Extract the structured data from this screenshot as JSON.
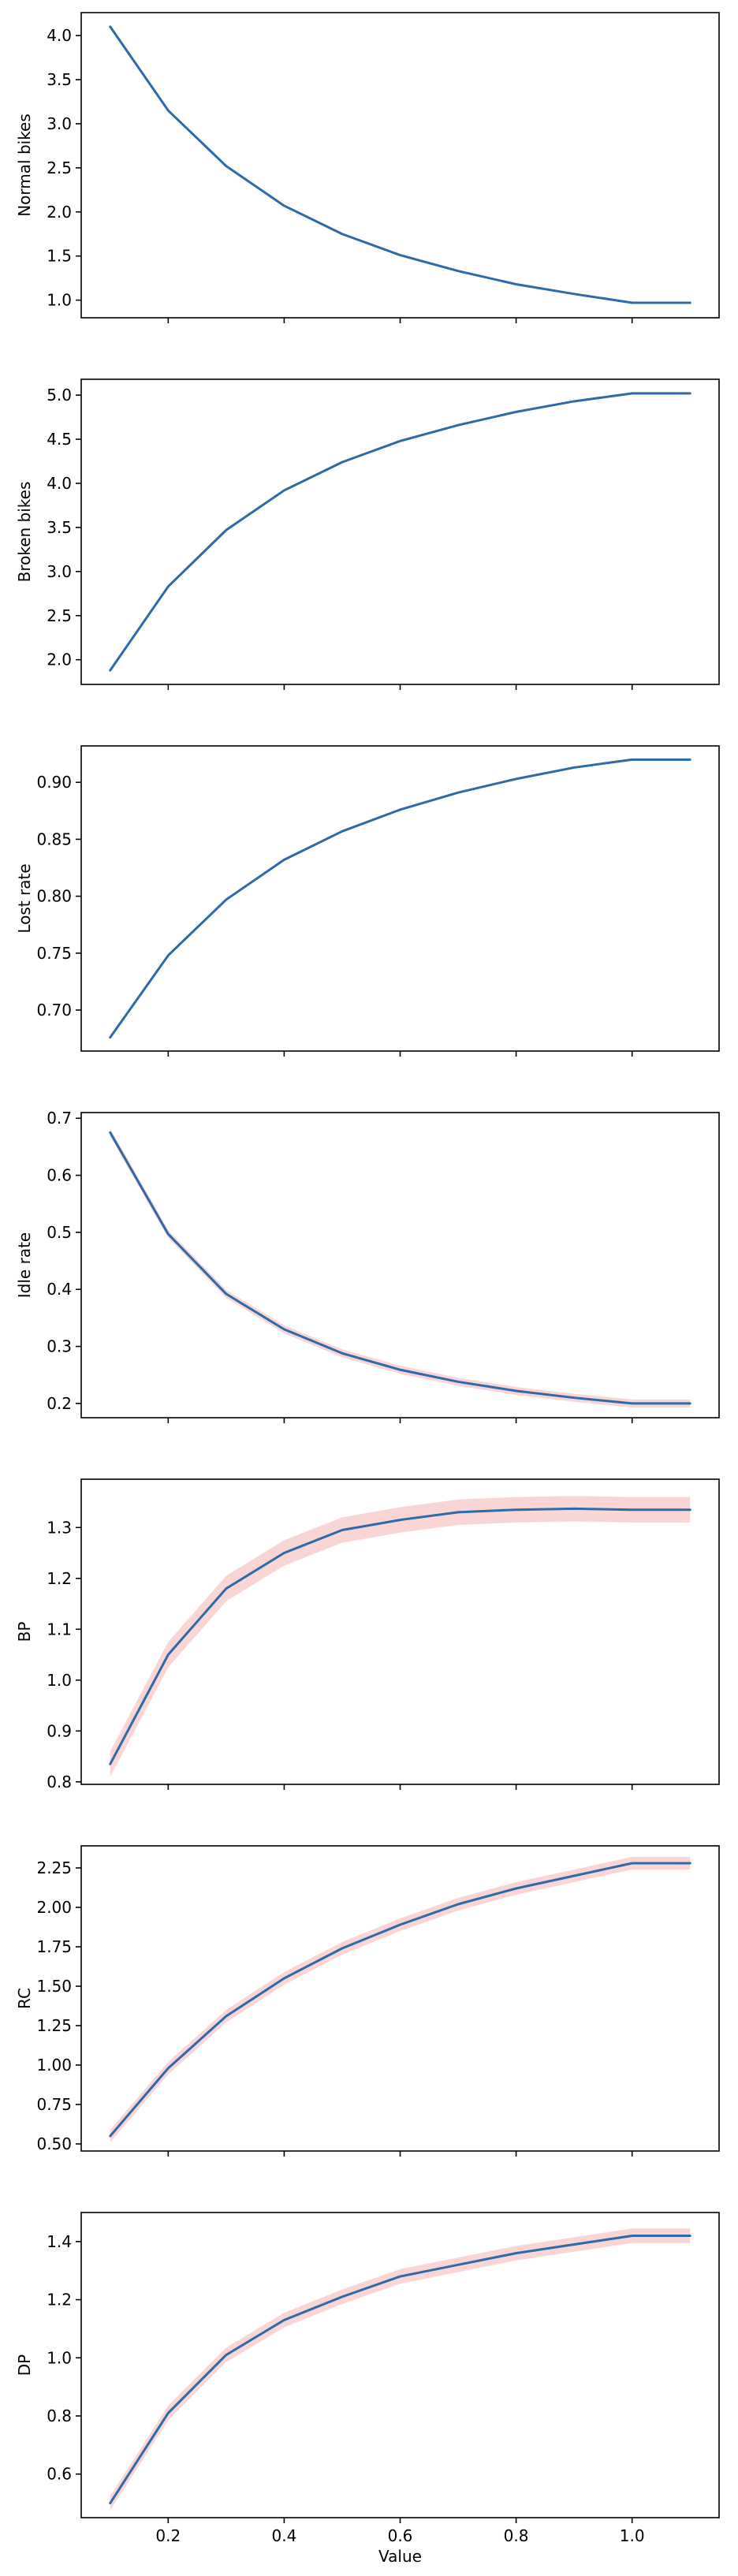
{
  "chart_data": [
    {
      "type": "line",
      "title": "",
      "xlabel": "",
      "ylabel": "Normal bikes",
      "x": [
        0.1,
        0.2,
        0.3,
        0.4,
        0.5,
        0.6,
        0.7,
        0.8,
        0.9,
        1.0,
        1.1
      ],
      "series": [
        {
          "values": [
            4.1,
            3.15,
            2.52,
            2.07,
            1.75,
            1.51,
            1.33,
            1.18,
            1.07,
            0.97,
            0.97
          ],
          "band": null
        }
      ],
      "xlim": [
        0.05,
        1.15
      ],
      "ylim": [
        0.8,
        4.26
      ],
      "yticks": [
        "1.0",
        "1.5",
        "2.0",
        "2.5",
        "3.0",
        "3.5",
        "4.0"
      ],
      "ytick_values": [
        1.0,
        1.5,
        2.0,
        2.5,
        3.0,
        3.5,
        4.0
      ],
      "xticks": [],
      "xtick_values": [
        0.2,
        0.4,
        0.6,
        0.8,
        1.0
      ]
    },
    {
      "type": "line",
      "title": "",
      "xlabel": "",
      "ylabel": "Broken bikes",
      "x": [
        0.1,
        0.2,
        0.3,
        0.4,
        0.5,
        0.6,
        0.7,
        0.8,
        0.9,
        1.0,
        1.1
      ],
      "series": [
        {
          "values": [
            1.88,
            2.83,
            3.47,
            3.92,
            4.24,
            4.48,
            4.66,
            4.81,
            4.93,
            5.02,
            5.02
          ],
          "band": null
        }
      ],
      "xlim": [
        0.05,
        1.15
      ],
      "ylim": [
        1.72,
        5.18
      ],
      "yticks": [
        "2.0",
        "2.5",
        "3.0",
        "3.5",
        "4.0",
        "4.5",
        "5.0"
      ],
      "ytick_values": [
        2.0,
        2.5,
        3.0,
        3.5,
        4.0,
        4.5,
        5.0
      ],
      "xticks": [],
      "xtick_values": [
        0.2,
        0.4,
        0.6,
        0.8,
        1.0
      ]
    },
    {
      "type": "line",
      "title": "",
      "xlabel": "",
      "ylabel": "Lost rate",
      "x": [
        0.1,
        0.2,
        0.3,
        0.4,
        0.5,
        0.6,
        0.7,
        0.8,
        0.9,
        1.0,
        1.1
      ],
      "series": [
        {
          "values": [
            0.676,
            0.748,
            0.797,
            0.832,
            0.857,
            0.876,
            0.891,
            0.903,
            0.913,
            0.92,
            0.92
          ],
          "band": null
        }
      ],
      "xlim": [
        0.05,
        1.15
      ],
      "ylim": [
        0.664,
        0.932
      ],
      "yticks": [
        "0.70",
        "0.75",
        "0.80",
        "0.85",
        "0.90"
      ],
      "ytick_values": [
        0.7,
        0.75,
        0.8,
        0.85,
        0.9
      ],
      "xticks": [],
      "xtick_values": [
        0.2,
        0.4,
        0.6,
        0.8,
        1.0
      ]
    },
    {
      "type": "line",
      "title": "",
      "xlabel": "",
      "ylabel": "Idle rate",
      "x": [
        0.1,
        0.2,
        0.3,
        0.4,
        0.5,
        0.6,
        0.7,
        0.8,
        0.9,
        1.0,
        1.1
      ],
      "series": [
        {
          "values": [
            0.675,
            0.497,
            0.392,
            0.33,
            0.288,
            0.259,
            0.238,
            0.222,
            0.21,
            0.2,
            0.2
          ],
          "band": 0.007
        }
      ],
      "xlim": [
        0.05,
        1.15
      ],
      "ylim": [
        0.175,
        0.71
      ],
      "yticks": [
        "0.2",
        "0.3",
        "0.4",
        "0.5",
        "0.6",
        "0.7"
      ],
      "ytick_values": [
        0.2,
        0.3,
        0.4,
        0.5,
        0.6,
        0.7
      ],
      "xticks": [],
      "xtick_values": [
        0.2,
        0.4,
        0.6,
        0.8,
        1.0
      ]
    },
    {
      "type": "line",
      "title": "",
      "xlabel": "",
      "ylabel": "BP",
      "x": [
        0.1,
        0.2,
        0.3,
        0.4,
        0.5,
        0.6,
        0.7,
        0.8,
        0.9,
        1.0,
        1.1
      ],
      "series": [
        {
          "values": [
            0.835,
            1.05,
            1.18,
            1.25,
            1.295,
            1.315,
            1.33,
            1.335,
            1.337,
            1.335,
            1.335
          ],
          "band": 0.025
        }
      ],
      "xlim": [
        0.05,
        1.15
      ],
      "ylim": [
        0.795,
        1.395
      ],
      "yticks": [
        "0.8",
        "0.9",
        "1.0",
        "1.1",
        "1.2",
        "1.3"
      ],
      "ytick_values": [
        0.8,
        0.9,
        1.0,
        1.1,
        1.2,
        1.3
      ],
      "xticks": [],
      "xtick_values": [
        0.2,
        0.4,
        0.6,
        0.8,
        1.0
      ]
    },
    {
      "type": "line",
      "title": "",
      "xlabel": "",
      "ylabel": "RC",
      "x": [
        0.1,
        0.2,
        0.3,
        0.4,
        0.5,
        0.6,
        0.7,
        0.8,
        0.9,
        1.0,
        1.1
      ],
      "series": [
        {
          "values": [
            0.55,
            0.98,
            1.31,
            1.55,
            1.74,
            1.89,
            2.02,
            2.12,
            2.2,
            2.28,
            2.28
          ],
          "band": 0.04
        }
      ],
      "xlim": [
        0.05,
        1.15
      ],
      "ylim": [
        0.455,
        2.39
      ],
      "yticks": [
        "0.50",
        "0.75",
        "1.00",
        "1.25",
        "1.50",
        "1.75",
        "2.00",
        "2.25"
      ],
      "ytick_values": [
        0.5,
        0.75,
        1.0,
        1.25,
        1.5,
        1.75,
        2.0,
        2.25
      ],
      "xticks": [],
      "xtick_values": [
        0.2,
        0.4,
        0.6,
        0.8,
        1.0
      ]
    },
    {
      "type": "line",
      "title": "",
      "xlabel": "Value",
      "ylabel": "DP",
      "x": [
        0.1,
        0.2,
        0.3,
        0.4,
        0.5,
        0.6,
        0.7,
        0.8,
        0.9,
        1.0,
        1.1
      ],
      "series": [
        {
          "values": [
            0.5,
            0.81,
            1.01,
            1.13,
            1.21,
            1.28,
            1.32,
            1.36,
            1.39,
            1.42,
            1.42
          ],
          "band": 0.025
        }
      ],
      "xlim": [
        0.05,
        1.15
      ],
      "ylim": [
        0.45,
        1.5
      ],
      "yticks": [
        "0.6",
        "0.8",
        "1.0",
        "1.2",
        "1.4"
      ],
      "ytick_values": [
        0.6,
        0.8,
        1.0,
        1.2,
        1.4
      ],
      "xticks": [
        "0.2",
        "0.4",
        "0.6",
        "0.8",
        "1.0"
      ],
      "xtick_values": [
        0.2,
        0.4,
        0.6,
        0.8,
        1.0
      ]
    }
  ],
  "colors": {
    "line": "#2c6aa8",
    "band": "#f6b3b3",
    "axes": "#000000",
    "background": "#ffffff"
  }
}
